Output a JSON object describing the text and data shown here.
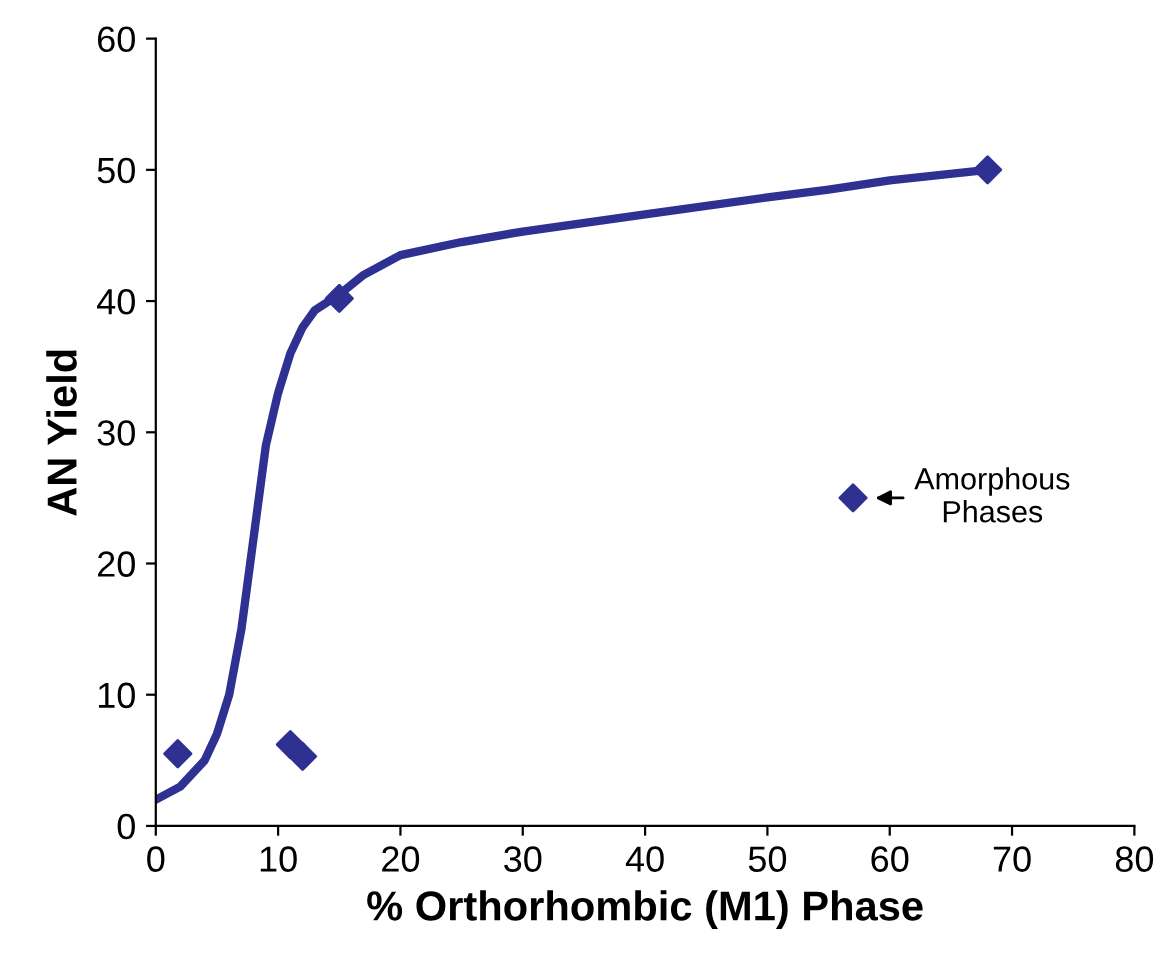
{
  "chart_data": {
    "type": "scatter",
    "xlabel": "% Orthorhombic (M1) Phase",
    "ylabel": "AN Yield",
    "xlim": [
      0,
      80
    ],
    "ylim": [
      0,
      60
    ],
    "xticks": [
      0,
      10,
      20,
      30,
      40,
      50,
      60,
      70,
      80
    ],
    "yticks": [
      0,
      10,
      20,
      30,
      40,
      50,
      60
    ],
    "grid": false,
    "legend": false,
    "series": [
      {
        "type": "line",
        "color": "#2e3192",
        "marker": "none",
        "line_style": "solid",
        "x": [
          0,
          2,
          4,
          5,
          6,
          7,
          8,
          9,
          10,
          11,
          12,
          13,
          15,
          17,
          20,
          25,
          30,
          40,
          50,
          55,
          60,
          68
        ],
        "values": [
          2,
          3,
          5,
          7,
          10,
          15,
          22,
          29,
          33,
          36,
          38,
          39.3,
          40.5,
          42,
          43.5,
          44.5,
          45.3,
          46.6,
          47.9,
          48.5,
          49.2,
          50
        ]
      },
      {
        "color": "#2e3192",
        "marker": "diamond",
        "x": [
          1.8,
          11,
          12,
          15,
          57,
          68
        ],
        "values": [
          5.5,
          6.2,
          5.3,
          40.2,
          25,
          50
        ]
      }
    ],
    "annotations": [
      {
        "text": "Amorphous\nPhases",
        "x": 57,
        "y": 25
      }
    ]
  }
}
